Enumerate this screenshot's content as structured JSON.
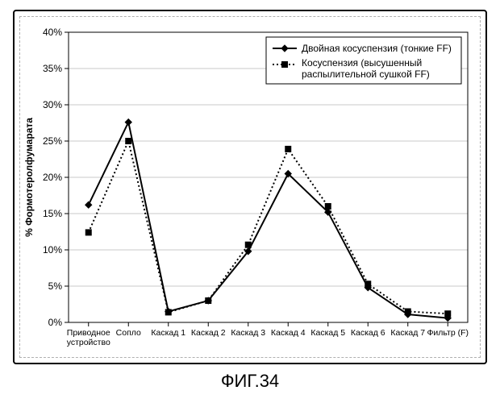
{
  "figure_caption": "ФИГ.34",
  "chart": {
    "type": "line",
    "background_color": "#ffffff",
    "plot_border_color": "#000000",
    "grid_color": "#c9c9c9",
    "tick_length": 5,
    "axis_fontsize": 12,
    "category_fontsize": 10.5,
    "legend_fontsize": 12,
    "y_axis": {
      "title": "% Формотеролфумарата",
      "title_fontsize": 12,
      "title_fontweight": "bold",
      "min": 0,
      "max": 40,
      "tick_step": 5,
      "tick_labels": [
        "0%",
        "5%",
        "10%",
        "15%",
        "20%",
        "25%",
        "30%",
        "35%",
        "40%"
      ]
    },
    "x_categories": [
      [
        "Приводное",
        "устройство"
      ],
      [
        "Сопло"
      ],
      [
        "Каскад 1"
      ],
      [
        "Каскад 2"
      ],
      [
        "Каскад 3"
      ],
      [
        "Каскад 4"
      ],
      [
        "Каскад 5"
      ],
      [
        "Каскад 6"
      ],
      [
        "Каскад 7"
      ],
      [
        "Фильтр (F)"
      ]
    ],
    "legend": {
      "box_border": "#000000",
      "box_fill": "#ffffff",
      "items": [
        {
          "label": "Двойная косуспензия (тонкие FF)"
        },
        {
          "label_line1": "Косуспензия (высушенный",
          "label_line2": "распылительной сушкой FF)"
        }
      ]
    },
    "series": [
      {
        "name": "Двойная косуспензия (тонкие FF)",
        "line_color": "#000000",
        "line_width": 2,
        "line_dash": "none",
        "marker": "diamond",
        "marker_size": 8,
        "marker_fill": "#000000",
        "values": [
          16.2,
          27.6,
          1.5,
          3.0,
          9.8,
          20.5,
          15.2,
          4.8,
          1.1,
          0.6
        ]
      },
      {
        "name": "Косуспензия (высушенный распылительной сушкой FF)",
        "line_color": "#000000",
        "line_width": 2,
        "line_dash": "2,3",
        "marker": "square",
        "marker_size": 7,
        "marker_fill": "#000000",
        "values": [
          12.4,
          25.0,
          1.4,
          3.0,
          10.7,
          23.9,
          16.0,
          5.3,
          1.5,
          1.2
        ]
      }
    ]
  }
}
